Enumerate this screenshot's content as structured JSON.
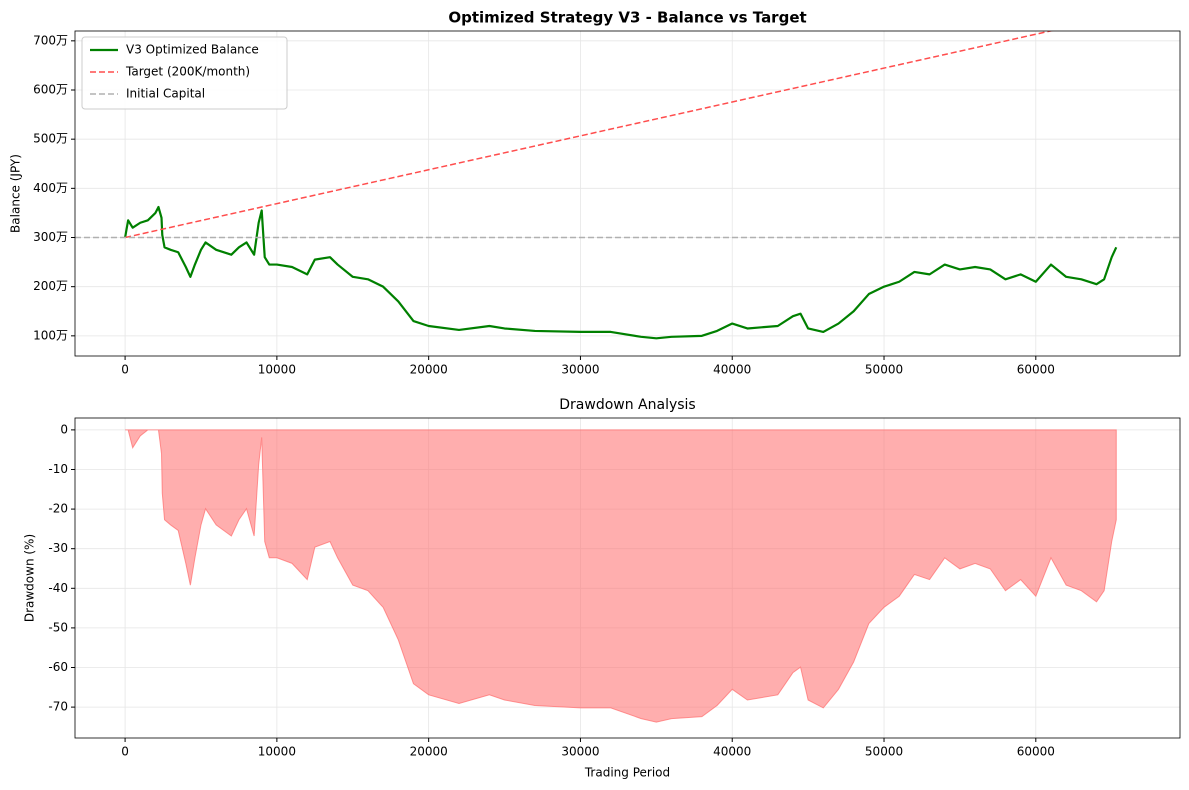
{
  "chart_data": [
    {
      "type": "line",
      "title": "Optimized Strategy V3 - Balance vs Target",
      "ylabel": "Balance (JPY)",
      "xlim": [
        -3300,
        69500
      ],
      "xticks": [
        0,
        10000,
        20000,
        30000,
        40000,
        50000,
        60000
      ],
      "ylim": [
        590000,
        7200000
      ],
      "yticks": [
        {
          "value": 1000000,
          "label": "100万"
        },
        {
          "value": 2000000,
          "label": "200万"
        },
        {
          "value": 3000000,
          "label": "300万"
        },
        {
          "value": 4000000,
          "label": "400万"
        },
        {
          "value": 5000000,
          "label": "500万"
        },
        {
          "value": 6000000,
          "label": "600万"
        },
        {
          "value": 7000000,
          "label": "700万"
        }
      ],
      "grid": true,
      "legend": "upper left",
      "series": [
        {
          "name": "V3 Optimized Balance",
          "color": "#008000",
          "dashed": false,
          "x": [
            0,
            200,
            500,
            1000,
            1500,
            2000,
            2200,
            2400,
            2450,
            2600,
            3000,
            3500,
            4000,
            4300,
            4600,
            5000,
            5300,
            6000,
            7000,
            7500,
            8000,
            8500,
            8800,
            9000,
            9200,
            9500,
            10000,
            11000,
            12000,
            12500,
            13500,
            14000,
            15000,
            16000,
            17000,
            18000,
            19000,
            20000,
            22000,
            24000,
            25000,
            27000,
            30000,
            32000,
            34000,
            35000,
            36000,
            38000,
            39000,
            40000,
            41000,
            43000,
            44000,
            44500,
            45000,
            46000,
            47000,
            48000,
            49000,
            50000,
            51000,
            52000,
            53000,
            54000,
            55000,
            56000,
            57000,
            58000,
            59000,
            60000,
            61000,
            62000,
            63000,
            64000,
            64500,
            65000,
            65300
          ],
          "values": [
            3000000,
            3350000,
            3200000,
            3300000,
            3350000,
            3500000,
            3620000,
            3400000,
            3050000,
            2800000,
            2750000,
            2700000,
            2400000,
            2200000,
            2450000,
            2750000,
            2900000,
            2750000,
            2650000,
            2800000,
            2900000,
            2650000,
            3300000,
            3550000,
            2600000,
            2450000,
            2450000,
            2400000,
            2250000,
            2550000,
            2600000,
            2450000,
            2200000,
            2150000,
            2000000,
            1700000,
            1300000,
            1200000,
            1120000,
            1200000,
            1150000,
            1100000,
            1080000,
            1080000,
            980000,
            950000,
            980000,
            1000000,
            1100000,
            1250000,
            1150000,
            1200000,
            1400000,
            1450000,
            1150000,
            1080000,
            1250000,
            1500000,
            1850000,
            2000000,
            2100000,
            2300000,
            2250000,
            2450000,
            2350000,
            2400000,
            2350000,
            2150000,
            2250000,
            2100000,
            2450000,
            2200000,
            2150000,
            2050000,
            2150000,
            2600000,
            2800000
          ]
        },
        {
          "name": "Target (200K/month)",
          "color": "#ff4d4d",
          "dashed": true,
          "x": [
            0,
            65300
          ],
          "values": [
            3000000,
            7500000
          ]
        },
        {
          "name": "Initial Capital",
          "color": "#b0b0b0",
          "dashed": true,
          "hline": 3000000
        }
      ]
    },
    {
      "type": "area",
      "title": "Drawdown Analysis",
      "xlabel": "Trading Period",
      "ylabel": "Drawdown (%)",
      "xlim": [
        -3300,
        69500
      ],
      "xticks": [
        0,
        10000,
        20000,
        30000,
        40000,
        50000,
        60000
      ],
      "ylim": [
        -77.8,
        3
      ],
      "yticks": [
        0,
        -10,
        -20,
        -30,
        -40,
        -50,
        -60,
        -70
      ],
      "grid": true,
      "color": "#ff6b6b",
      "x": [
        0,
        200,
        500,
        1000,
        1500,
        2000,
        2200,
        2400,
        2450,
        2600,
        3000,
        3500,
        4000,
        4300,
        4600,
        5000,
        5300,
        6000,
        7000,
        7500,
        8000,
        8500,
        8800,
        9000,
        9200,
        9500,
        10000,
        11000,
        12000,
        12500,
        13500,
        14000,
        15000,
        16000,
        17000,
        18000,
        19000,
        20000,
        22000,
        24000,
        25000,
        27000,
        30000,
        32000,
        34000,
        35000,
        36000,
        38000,
        39000,
        40000,
        41000,
        43000,
        44000,
        44500,
        45000,
        46000,
        47000,
        48000,
        49000,
        50000,
        51000,
        52000,
        53000,
        54000,
        55000,
        56000,
        57000,
        58000,
        59000,
        60000,
        61000,
        62000,
        63000,
        64000,
        64500,
        65000,
        65300
      ],
      "values": [
        0,
        0,
        -4.5,
        -1.5,
        0,
        0,
        0,
        -6,
        -16,
        -22.7,
        -24,
        -25.4,
        -33.7,
        -39.2,
        -32.3,
        -24,
        -19.9,
        -24,
        -26.8,
        -22.7,
        -19.9,
        -26.8,
        -8.8,
        -1.9,
        -28.2,
        -32.3,
        -32.3,
        -33.7,
        -37.8,
        -29.6,
        -28.2,
        -32.3,
        -39.2,
        -40.6,
        -44.8,
        -53,
        -64.1,
        -66.9,
        -69.1,
        -66.9,
        -68.2,
        -69.6,
        -70.2,
        -70.2,
        -72.9,
        -73.8,
        -72.9,
        -72.4,
        -69.6,
        -65.5,
        -68.2,
        -66.9,
        -61.3,
        -59.9,
        -68.2,
        -70.2,
        -65.5,
        -58.6,
        -48.9,
        -44.8,
        -42,
        -36.5,
        -37.8,
        -32.3,
        -35.1,
        -33.7,
        -35.1,
        -40.6,
        -37.8,
        -42,
        -32.3,
        -39.2,
        -40.6,
        -43.4,
        -40.6,
        -28.2,
        -22.7
      ]
    }
  ]
}
